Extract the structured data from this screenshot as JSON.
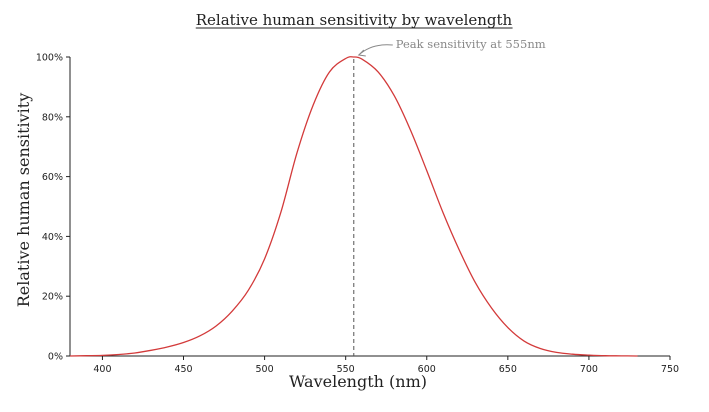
{
  "chart_data": {
    "type": "line",
    "title": "Relative human sensitivity by wavelength",
    "xlabel": "Wavelength (nm)",
    "ylabel": "Relative human sensitivity",
    "xlim": [
      380,
      750
    ],
    "ylim": [
      0,
      100
    ],
    "x_ticks": [
      "400",
      "450",
      "500",
      "550",
      "600",
      "650",
      "700",
      "750"
    ],
    "y_ticks": [
      "0%",
      "20%",
      "40%",
      "60%",
      "80%",
      "100%"
    ],
    "grid": false,
    "line_color": "#d33a3a",
    "series": [
      {
        "x": [
          380,
          390,
          400,
          410,
          420,
          430,
          440,
          450,
          460,
          470,
          480,
          490,
          500,
          510,
          520,
          530,
          540,
          550,
          555,
          560,
          570,
          580,
          590,
          600,
          610,
          620,
          630,
          640,
          650,
          660,
          670,
          680,
          690,
          700,
          710,
          720,
          730
        ],
        "values": [
          0.0,
          0.1,
          0.2,
          0.5,
          1.0,
          1.9,
          3.0,
          4.5,
          6.7,
          10.0,
          15.0,
          22.0,
          32.5,
          48.0,
          68.0,
          84.0,
          95.0,
          99.5,
          100.0,
          99.3,
          95.0,
          87.0,
          75.5,
          62.0,
          48.0,
          35.5,
          24.5,
          16.0,
          9.5,
          5.0,
          2.5,
          1.2,
          0.6,
          0.3,
          0.1,
          0.05,
          0.0
        ]
      }
    ],
    "annotation": {
      "text": "Peak sensitivity at 555nm",
      "x": 555,
      "y": 100
    }
  }
}
